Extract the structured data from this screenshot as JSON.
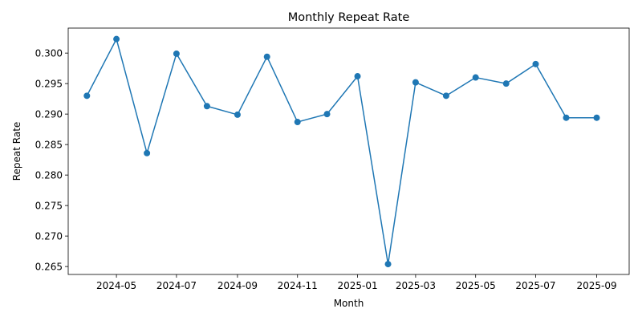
{
  "chart_data": {
    "type": "line",
    "title": "Monthly Repeat Rate",
    "xlabel": "Month",
    "ylabel": "Repeat Rate",
    "grid": false,
    "x_tick_labels": [
      "2024-05",
      "2024-07",
      "2024-09",
      "2024-11",
      "2025-01",
      "2025-03",
      "2025-05",
      "2025-07",
      "2025-09"
    ],
    "y_tick_labels": [
      "0.265",
      "0.270",
      "0.275",
      "0.280",
      "0.285",
      "0.290",
      "0.295",
      "0.300"
    ],
    "x": [
      "2024-04",
      "2024-05",
      "2024-06",
      "2024-07",
      "2024-08",
      "2024-09",
      "2024-10",
      "2024-11",
      "2024-12",
      "2025-01",
      "2025-02",
      "2025-03",
      "2025-04",
      "2025-05",
      "2025-06",
      "2025-07",
      "2025-08",
      "2025-09"
    ],
    "series": [
      {
        "color": "#1f77b4",
        "marker": "circle",
        "values": [
          0.293,
          0.3023,
          0.2836,
          0.2999,
          0.2913,
          0.2899,
          0.2994,
          0.2887,
          0.29,
          0.2962,
          0.2654,
          0.2952,
          0.293,
          0.296,
          0.295,
          0.2982,
          0.2894,
          0.2894
        ]
      }
    ],
    "xlim": [
      "2024-03-13",
      "2025-10-04"
    ],
    "ylim": [
      0.2637,
      0.3041
    ]
  }
}
